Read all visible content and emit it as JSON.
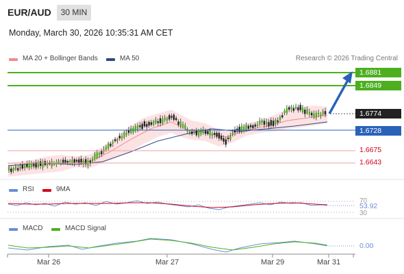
{
  "header": {
    "symbol": "EUR/AUD",
    "timeframe": "30 MIN",
    "datetime": "Monday, March 30, 2026 10:35:31 AM CET",
    "copyright": "Research © 2026 Trading Central"
  },
  "legend": {
    "ma20": "MA 20 + Bollinger Bands",
    "ma50": "MA 50",
    "ma20_color": "#f28b8b",
    "ma50_color": "#2c4a86"
  },
  "levels": {
    "resistance_2": "1.6881",
    "resistance_1": "1.6849",
    "last": "1.6774",
    "pivot": "1.6728",
    "support_1": "1.6675",
    "support_2": "1.6643",
    "green": "#4caf1f",
    "blue": "#2a62b9",
    "red": "#d0021b",
    "dark": "#222222"
  },
  "rsi": {
    "label": "RSI",
    "signal_label": "9MA",
    "upper": "70",
    "lower": "30",
    "value": "53.92"
  },
  "macd": {
    "label": "MACD",
    "signal_label": "MACD Signal",
    "value": "0.00"
  },
  "x_axis": [
    "Mar 26",
    "Mar 27",
    "Mar 29",
    "Mar 31"
  ]
}
